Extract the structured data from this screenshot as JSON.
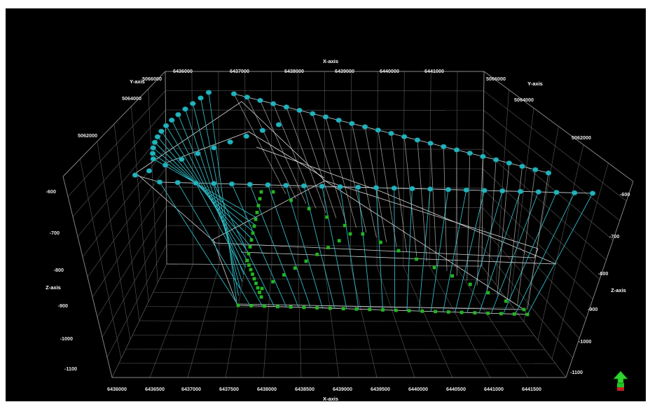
{
  "x_axis": {
    "title_top": "X-axis",
    "title_bottom": "X-axis",
    "top_ticks": [
      "6436000",
      "6437000",
      "6438000",
      "6439000",
      "6440000",
      "6441000"
    ],
    "bottom_ticks": [
      "6436000",
      "6436500",
      "6437000",
      "6437500",
      "6438000",
      "6438500",
      "6439000",
      "6439500",
      "6440000",
      "6440500",
      "6441000",
      "6441500"
    ]
  },
  "y_axis": {
    "title_left": "Y-axis",
    "title_right": "Y-axis",
    "left_ticks": [
      "5066000",
      "5064000",
      "5062000"
    ],
    "right_ticks": [
      "5066000",
      "5064000",
      "5062000"
    ]
  },
  "z_axis": {
    "title_left": "Z-axis",
    "title_right": "Z-axis",
    "left_ticks": [
      "-600",
      "-700",
      "-800",
      "-900",
      "-1000",
      "-1100"
    ],
    "right_ticks": [
      "-600",
      "-700",
      "-800",
      "-900",
      "-1000",
      "-1100"
    ]
  },
  "colors": {
    "background": "#000000",
    "cyan_points": "#22b3bd",
    "green_points": "#22b522",
    "rays": "#2fb8c2",
    "frame": "#8a8a8a"
  },
  "orientation_widget": {
    "icon": "up-arrow-icon"
  }
}
